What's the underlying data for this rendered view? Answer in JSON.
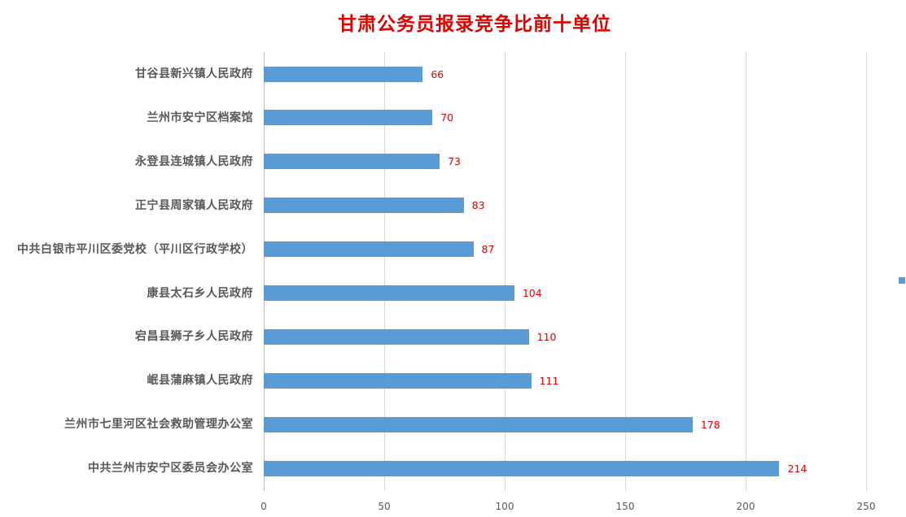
{
  "chart_data": {
    "type": "bar",
    "orientation": "horizontal",
    "title": "甘肃公务员报录竞争比前十单位",
    "categories": [
      "甘谷县新兴镇人民政府",
      "兰州市安宁区档案馆",
      "永登县连城镇人民政府",
      "正宁县周家镇人民政府",
      "中共白银市平川区委党校（平川区行政学校）",
      "康县太石乡人民政府",
      "宕昌县狮子乡人民政府",
      "岷县蒲麻镇人民政府",
      "兰州市七里河区社会救助管理办公室",
      "中共兰州市安宁区委员会办公室"
    ],
    "values": [
      66,
      70,
      73,
      83,
      87,
      104,
      110,
      111,
      178,
      214
    ],
    "xlabel": "",
    "ylabel": "",
    "xlim": [
      0,
      250
    ],
    "x_ticks": [
      "0",
      "50",
      "100",
      "150",
      "200",
      "250"
    ],
    "grid": true,
    "legend_position": "right",
    "data_labels": true,
    "colors": {
      "bar": "#5b9bd5",
      "title": "#e00000",
      "data_label": "#e00000"
    }
  }
}
